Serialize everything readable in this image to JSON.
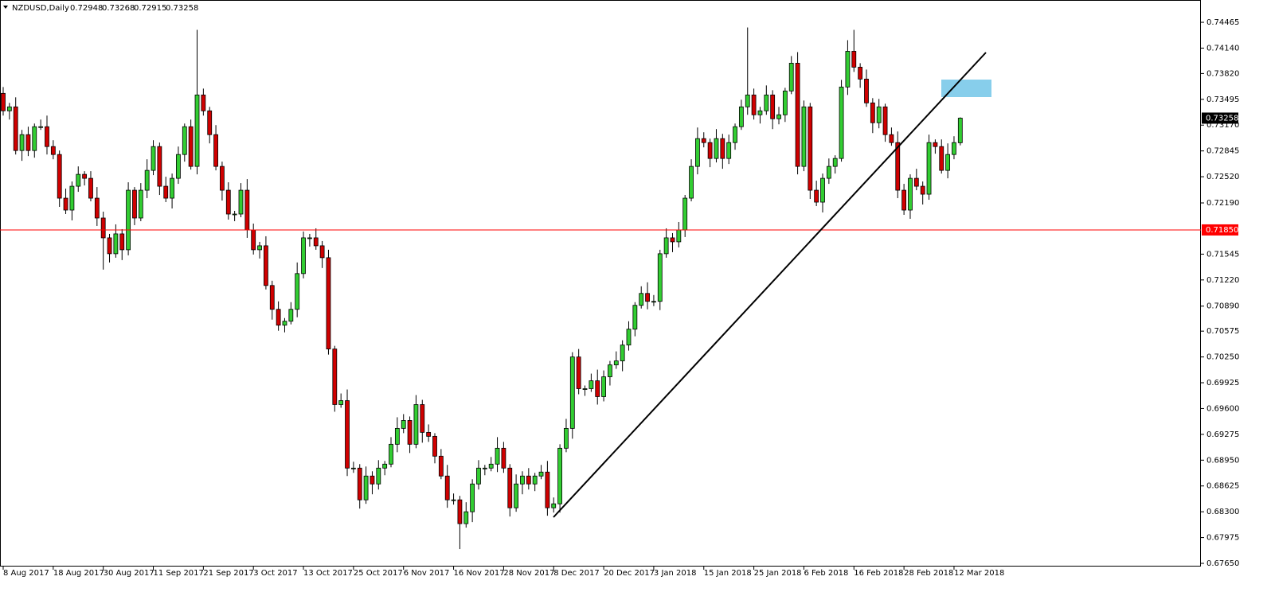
{
  "chart_data": {
    "type": "candlestick",
    "title": "NZDUSD,Daily",
    "up_color": "#32cd32",
    "down_color": "#d00000",
    "wick_color": "#000000",
    "grid": false,
    "categories": [
      "8 Aug 2017",
      null,
      null,
      null,
      null,
      null,
      null,
      null,
      "18 Aug 2017",
      null,
      null,
      null,
      null,
      null,
      null,
      null,
      "30 Aug 2017",
      null,
      null,
      null,
      null,
      null,
      null,
      null,
      "11 Sep 2017",
      null,
      null,
      null,
      null,
      null,
      null,
      null,
      "21 Sep 2017",
      null,
      null,
      null,
      null,
      null,
      null,
      null,
      "3 Oct 2017",
      null,
      null,
      null,
      null,
      null,
      null,
      null,
      "13 Oct 2017",
      null,
      null,
      null,
      null,
      null,
      null,
      null,
      "25 Oct 2017",
      null,
      null,
      null,
      null,
      null,
      null,
      null,
      "6 Nov 2017",
      null,
      null,
      null,
      null,
      null,
      null,
      null,
      "16 Nov 2017",
      null,
      null,
      null,
      null,
      null,
      null,
      null,
      "28 Nov 2017",
      null,
      null,
      null,
      null,
      null,
      null,
      null,
      "8 Dec 2017",
      null,
      null,
      null,
      null,
      null,
      null,
      null,
      "20 Dec 2017",
      null,
      null,
      null,
      null,
      null,
      null,
      null,
      "3 Jan 2018",
      null,
      null,
      null,
      null,
      null,
      null,
      null,
      "15 Jan 2018",
      null,
      null,
      null,
      null,
      null,
      null,
      null,
      "25 Jan 2018",
      null,
      null,
      null,
      null,
      null,
      null,
      null,
      "6 Feb 2018",
      null,
      null,
      null,
      null,
      null,
      null,
      null,
      "16 Feb 2018",
      null,
      null,
      null,
      null,
      null,
      null,
      null,
      "28 Feb 2018",
      null,
      null,
      null,
      null,
      null,
      null,
      null,
      "12 Mar 2018",
      null
    ],
    "open": [
      0.7357,
      0.7335,
      0.734,
      0.7285,
      0.7305,
      0.7285,
      0.7315,
      0.7315,
      0.729,
      0.728,
      0.7225,
      0.721,
      0.724,
      0.7255,
      0.725,
      0.7225,
      0.72,
      0.7175,
      0.7155,
      0.718,
      0.716,
      0.7235,
      0.72,
      0.7235,
      0.726,
      0.729,
      0.724,
      0.7225,
      0.725,
      0.728,
      0.7315,
      0.7265,
      0.7355,
      0.7335,
      0.7305,
      0.7265,
      0.7235,
      0.7205,
      0.7205,
      0.7235,
      0.7185,
      0.716,
      0.7165,
      0.7115,
      0.7085,
      0.7065,
      0.707,
      0.7085,
      0.713,
      0.7175,
      0.7175,
      0.7165,
      0.715,
      0.7035,
      0.6965,
      0.697,
      0.6885,
      0.6885,
      0.6845,
      0.6875,
      0.6865,
      0.6885,
      0.689,
      0.6915,
      0.6935,
      0.6945,
      0.6915,
      0.6965,
      0.693,
      0.6925,
      0.69,
      0.6875,
      0.6845,
      0.6845,
      0.6815,
      0.683,
      0.6865,
      0.6885,
      0.6885,
      0.689,
      0.691,
      0.6885,
      0.6835,
      0.6865,
      0.6875,
      0.6865,
      0.6875,
      0.688,
      0.6835,
      0.684,
      0.691,
      0.6935,
      0.7025,
      0.6985,
      0.6985,
      0.6995,
      0.6975,
      0.7,
      0.7015,
      0.702,
      0.704,
      0.706,
      0.709,
      0.7105,
      0.7095,
      0.7095,
      0.7155,
      0.7175,
      0.717,
      0.7185,
      0.7225,
      0.7265,
      0.73,
      0.7295,
      0.7275,
      0.73,
      0.7275,
      0.7295,
      0.7315,
      0.734,
      0.7355,
      0.733,
      0.7335,
      0.7355,
      0.7325,
      0.733,
      0.736,
      0.7395,
      0.7265,
      0.734,
      0.7235,
      0.722,
      0.725,
      0.7265,
      0.7275,
      0.7365,
      0.741,
      0.739,
      0.7375,
      0.7345,
      0.732,
      0.734,
      0.7305,
      0.7295,
      0.7235,
      0.721,
      0.725,
      0.724,
      0.723,
      0.7295,
      0.729,
      0.726,
      0.728,
      0.72948
    ],
    "high": [
      0.7365,
      0.7345,
      0.7352,
      0.7311,
      0.7315,
      0.7319,
      0.7324,
      0.7329,
      0.7298,
      0.7285,
      0.7237,
      0.7246,
      0.7265,
      0.7259,
      0.7259,
      0.7239,
      0.7208,
      0.718,
      0.7192,
      0.7186,
      0.7245,
      0.7239,
      0.7244,
      0.7274,
      0.7298,
      0.7295,
      0.7252,
      0.7256,
      0.729,
      0.7319,
      0.7324,
      0.7437,
      0.7363,
      0.734,
      0.7317,
      0.7271,
      0.7245,
      0.7209,
      0.7244,
      0.7249,
      0.7193,
      0.717,
      0.7177,
      0.7121,
      0.7095,
      0.7074,
      0.7094,
      0.7144,
      0.7183,
      0.718,
      0.7187,
      0.7171,
      0.716,
      0.7039,
      0.6979,
      0.6984,
      0.6893,
      0.689,
      0.6887,
      0.6881,
      0.6895,
      0.6894,
      0.6924,
      0.6949,
      0.6953,
      0.695,
      0.6977,
      0.6971,
      0.694,
      0.6929,
      0.6909,
      0.6889,
      0.6853,
      0.685,
      0.6842,
      0.6871,
      0.6895,
      0.6889,
      0.6899,
      0.6924,
      0.6918,
      0.689,
      0.6877,
      0.6881,
      0.6885,
      0.6879,
      0.6889,
      0.6894,
      0.6848,
      0.6915,
      0.6947,
      0.7031,
      0.7035,
      0.6989,
      0.7004,
      0.7009,
      0.7008,
      0.702,
      0.7032,
      0.7046,
      0.707,
      0.7094,
      0.7114,
      0.7119,
      0.7103,
      0.716,
      0.7187,
      0.7181,
      0.7195,
      0.7229,
      0.7274,
      0.7314,
      0.7308,
      0.73,
      0.7312,
      0.7306,
      0.7305,
      0.7319,
      0.7349,
      0.744,
      0.7363,
      0.734,
      0.7367,
      0.7361,
      0.734,
      0.7364,
      0.7404,
      0.7409,
      0.7348,
      0.7345,
      0.7247,
      0.7256,
      0.7275,
      0.7279,
      0.7374,
      0.7424,
      0.7437,
      0.7395,
      0.7387,
      0.7351,
      0.735,
      0.7344,
      0.7314,
      0.7309,
      0.7243,
      0.7255,
      0.7262,
      0.7246,
      0.7305,
      0.7299,
      0.7299,
      0.7294,
      0.7303,
      0.73268
    ],
    "low": [
      0.7329,
      0.7324,
      0.728,
      0.7272,
      0.7278,
      0.7276,
      0.7311,
      0.728,
      0.7274,
      0.7214,
      0.7205,
      0.7197,
      0.7233,
      0.7241,
      0.7221,
      0.719,
      0.7135,
      0.7144,
      0.715,
      0.7147,
      0.7153,
      0.7191,
      0.7196,
      0.7225,
      0.7254,
      0.7229,
      0.722,
      0.7212,
      0.7243,
      0.7271,
      0.7261,
      0.7255,
      0.7329,
      0.7294,
      0.726,
      0.7222,
      0.7198,
      0.7196,
      0.7201,
      0.7175,
      0.7154,
      0.7149,
      0.711,
      0.7072,
      0.7058,
      0.7056,
      0.7066,
      0.7075,
      0.7124,
      0.7164,
      0.716,
      0.7137,
      0.7028,
      0.6956,
      0.6961,
      0.6875,
      0.6879,
      0.6834,
      0.684,
      0.6852,
      0.6858,
      0.6876,
      0.6886,
      0.6905,
      0.6929,
      0.6904,
      0.691,
      0.6917,
      0.6918,
      0.6891,
      0.6871,
      0.6835,
      0.6839,
      0.6783,
      0.681,
      0.6817,
      0.6858,
      0.6876,
      0.6881,
      0.688,
      0.6879,
      0.6824,
      0.683,
      0.6852,
      0.6858,
      0.6856,
      0.6871,
      0.6825,
      0.6829,
      0.6829,
      0.6905,
      0.6922,
      0.6978,
      0.6976,
      0.6981,
      0.6965,
      0.6969,
      0.6989,
      0.701,
      0.7007,
      0.7033,
      0.7051,
      0.7086,
      0.7085,
      0.7089,
      0.7084,
      0.715,
      0.7157,
      0.7163,
      0.7176,
      0.7221,
      0.7255,
      0.7289,
      0.7264,
      0.727,
      0.7262,
      0.7268,
      0.7286,
      0.7311,
      0.733,
      0.7324,
      0.7319,
      0.733,
      0.7312,
      0.7318,
      0.7321,
      0.7356,
      0.7255,
      0.7259,
      0.7224,
      0.7215,
      0.7207,
      0.7243,
      0.7256,
      0.7271,
      0.7355,
      0.7384,
      0.7364,
      0.734,
      0.7307,
      0.7313,
      0.7296,
      0.7291,
      0.7225,
      0.7204,
      0.7199,
      0.7235,
      0.7217,
      0.7223,
      0.7281,
      0.7256,
      0.725,
      0.7274,
      0.72915
    ],
    "close": [
      0.7335,
      0.734,
      0.7285,
      0.7305,
      0.7285,
      0.7315,
      0.7315,
      0.729,
      0.728,
      0.7225,
      0.721,
      0.724,
      0.7255,
      0.725,
      0.7225,
      0.72,
      0.7175,
      0.7155,
      0.718,
      0.716,
      0.7235,
      0.72,
      0.7235,
      0.726,
      0.729,
      0.724,
      0.7225,
      0.725,
      0.728,
      0.7315,
      0.7265,
      0.7355,
      0.7335,
      0.7305,
      0.7265,
      0.7235,
      0.7205,
      0.7205,
      0.7235,
      0.7185,
      0.716,
      0.7165,
      0.7115,
      0.7085,
      0.7065,
      0.707,
      0.7085,
      0.713,
      0.7175,
      0.7175,
      0.7165,
      0.715,
      0.7035,
      0.6965,
      0.697,
      0.6885,
      0.6885,
      0.6845,
      0.6875,
      0.6865,
      0.6885,
      0.689,
      0.6915,
      0.6935,
      0.6945,
      0.6915,
      0.6965,
      0.693,
      0.6925,
      0.69,
      0.6875,
      0.6845,
      0.6845,
      0.6815,
      0.683,
      0.6865,
      0.6885,
      0.6885,
      0.689,
      0.691,
      0.6885,
      0.6835,
      0.6865,
      0.6875,
      0.6865,
      0.6875,
      0.688,
      0.6835,
      0.684,
      0.691,
      0.6935,
      0.7025,
      0.6985,
      0.6985,
      0.6995,
      0.6975,
      0.7,
      0.7015,
      0.702,
      0.704,
      0.706,
      0.709,
      0.7105,
      0.7095,
      0.7095,
      0.7155,
      0.7175,
      0.717,
      0.7185,
      0.7225,
      0.7265,
      0.73,
      0.7295,
      0.7275,
      0.73,
      0.7275,
      0.7295,
      0.7315,
      0.734,
      0.7355,
      0.733,
      0.7335,
      0.7355,
      0.7325,
      0.733,
      0.736,
      0.7395,
      0.7265,
      0.734,
      0.7235,
      0.722,
      0.725,
      0.7265,
      0.7275,
      0.7365,
      0.741,
      0.739,
      0.7375,
      0.7345,
      0.732,
      0.734,
      0.7305,
      0.7295,
      0.7235,
      0.721,
      0.725,
      0.724,
      0.723,
      0.7295,
      0.729,
      0.726,
      0.728,
      0.7295,
      0.73258
    ],
    "ylim": [
      0.6761,
      0.74746
    ],
    "yticks": [
      0.74465,
      {
        "value": 0.7414,
        "label": "0.74140"
      },
      {
        "value": 0.7382,
        "label": "0.73820"
      },
      0.73495,
      {
        "value": 0.7317,
        "label": "0.73170"
      },
      0.72845,
      {
        "value": 0.7252,
        "label": "0.72520"
      },
      {
        "value": 0.7219,
        "label": "0.72190"
      },
      0.71545,
      {
        "value": 0.7122,
        "label": "0.71220"
      },
      {
        "value": 0.7089,
        "label": "0.70890"
      },
      0.70575,
      {
        "value": 0.7025,
        "label": "0.70250"
      },
      0.69925,
      {
        "value": 0.696,
        "label": "0.69600"
      },
      0.69275,
      {
        "value": 0.6895,
        "label": "0.68950"
      },
      0.68625,
      {
        "value": 0.683,
        "label": "0.68300"
      },
      0.67975,
      {
        "value": 0.6765,
        "label": "0.67650"
      }
    ],
    "hline": {
      "value": 0.7185,
      "label": "0.71850",
      "color": "#ff0000"
    }
  }
}
